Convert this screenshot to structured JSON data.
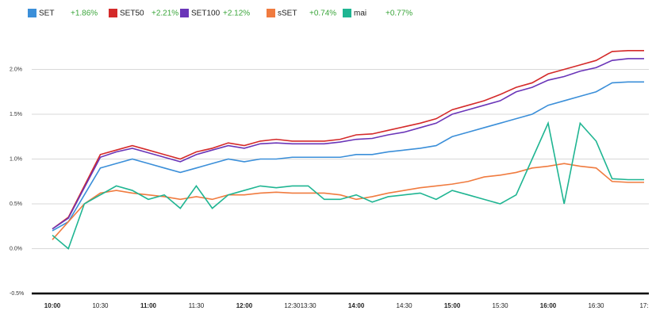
{
  "chart_data": {
    "type": "line",
    "categories": [
      "10:00",
      null,
      null,
      "10:30",
      null,
      null,
      "11:00",
      null,
      null,
      "11:30",
      null,
      null,
      "12:00",
      null,
      null,
      "12:30",
      "13:30",
      null,
      null,
      "14:00",
      null,
      null,
      "14:30",
      null,
      null,
      "15:00",
      null,
      null,
      "15:30",
      null,
      null,
      "16:00",
      null,
      null,
      "16:30",
      null,
      null,
      "17:"
    ],
    "series": [
      {
        "name": "SET",
        "change_label": "+1.86%",
        "color": "#3b8fd9",
        "values": [
          0.2,
          0.3,
          0.6,
          0.9,
          0.95,
          1.0,
          0.95,
          0.9,
          0.85,
          0.9,
          0.95,
          1.0,
          0.97,
          1.0,
          1.0,
          1.02,
          1.02,
          1.02,
          1.02,
          1.05,
          1.05,
          1.08,
          1.1,
          1.12,
          1.15,
          1.25,
          1.3,
          1.35,
          1.4,
          1.45,
          1.5,
          1.6,
          1.65,
          1.7,
          1.75,
          1.85,
          1.86,
          1.86
        ]
      },
      {
        "name": "SET50",
        "change_label": "+2.21%",
        "color": "#d42a2a",
        "values": [
          0.22,
          0.35,
          0.7,
          1.05,
          1.1,
          1.15,
          1.1,
          1.05,
          1.0,
          1.08,
          1.12,
          1.18,
          1.15,
          1.2,
          1.22,
          1.2,
          1.2,
          1.2,
          1.22,
          1.27,
          1.28,
          1.32,
          1.36,
          1.4,
          1.45,
          1.55,
          1.6,
          1.65,
          1.72,
          1.8,
          1.85,
          1.95,
          2.0,
          2.05,
          2.1,
          2.2,
          2.21,
          2.21
        ]
      },
      {
        "name": "SET100",
        "change_label": "+2.12%",
        "color": "#6a35b8",
        "values": [
          0.22,
          0.34,
          0.68,
          1.02,
          1.08,
          1.12,
          1.07,
          1.02,
          0.97,
          1.05,
          1.1,
          1.15,
          1.12,
          1.17,
          1.18,
          1.17,
          1.17,
          1.17,
          1.19,
          1.22,
          1.23,
          1.27,
          1.3,
          1.35,
          1.4,
          1.5,
          1.55,
          1.6,
          1.65,
          1.75,
          1.8,
          1.88,
          1.92,
          1.98,
          2.02,
          2.1,
          2.12,
          2.12
        ]
      },
      {
        "name": "sSET",
        "change_label": "+0.74%",
        "color": "#f07b3f",
        "values": [
          0.1,
          0.3,
          0.5,
          0.62,
          0.65,
          0.62,
          0.6,
          0.58,
          0.55,
          0.58,
          0.55,
          0.6,
          0.6,
          0.62,
          0.63,
          0.62,
          0.62,
          0.62,
          0.6,
          0.55,
          0.58,
          0.62,
          0.65,
          0.68,
          0.7,
          0.72,
          0.75,
          0.8,
          0.82,
          0.85,
          0.9,
          0.92,
          0.95,
          0.92,
          0.9,
          0.75,
          0.74,
          0.74
        ]
      },
      {
        "name": "mai",
        "change_label": "+0.77%",
        "color": "#1fb592",
        "values": [
          0.15,
          0.0,
          0.5,
          0.6,
          0.7,
          0.65,
          0.55,
          0.6,
          0.45,
          0.7,
          0.45,
          0.6,
          0.65,
          0.7,
          0.68,
          0.7,
          0.7,
          0.55,
          0.55,
          0.6,
          0.52,
          0.58,
          0.6,
          0.62,
          0.55,
          0.65,
          0.6,
          0.55,
          0.5,
          0.6,
          1.0,
          1.4,
          0.5,
          1.4,
          1.2,
          0.78,
          0.77,
          0.77
        ]
      }
    ],
    "ylim": [
      -0.5,
      2.45
    ],
    "yticks": [
      {
        "value": -0.5,
        "label": "-0.5%"
      },
      {
        "value": 0,
        "label": "0.0%"
      },
      {
        "value": 0.5,
        "label": "0.5%"
      },
      {
        "value": 1,
        "label": "1.0%"
      },
      {
        "value": 1.5,
        "label": "1.5%"
      },
      {
        "value": 2,
        "label": "2.0%"
      }
    ],
    "grid": true
  }
}
